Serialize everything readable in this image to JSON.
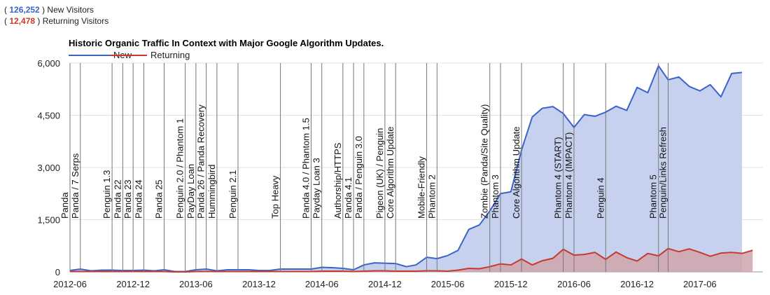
{
  "stats": {
    "new": {
      "value": "126,252",
      "label": "New Visitors",
      "color": "#3a64c8"
    },
    "returning": {
      "value": "12,478",
      "label": "Returning Visitors",
      "color": "#c8392b"
    }
  },
  "chart_data": {
    "type": "area",
    "title": "Historic Organic Traffic In Context with Major Google Algorithm Updates.",
    "legend_position": "top-left",
    "grid": true,
    "ylim": [
      0,
      6000
    ],
    "yticks": [
      "0",
      "1,500",
      "3,000",
      "4,500",
      "6,000"
    ],
    "yticks_values": [
      0,
      1500,
      3000,
      4500,
      6000
    ],
    "xlim": [
      "2012-06-01",
      "2017-12-01"
    ],
    "xticks": [
      "2012-06",
      "2012-12",
      "2013-06",
      "2013-12",
      "2014-06",
      "2014-12",
      "2015-06",
      "2015-12",
      "2016-06",
      "2016-12",
      "2017-06"
    ],
    "series": [
      {
        "name": "New",
        "color": "#3a64c8",
        "fill": "#c5d1ee",
        "points": [
          [
            "2012-06-01",
            40
          ],
          [
            "2012-07-01",
            80
          ],
          [
            "2012-08-01",
            30
          ],
          [
            "2012-09-01",
            50
          ],
          [
            "2012-10-01",
            50
          ],
          [
            "2012-11-01",
            40
          ],
          [
            "2012-12-01",
            40
          ],
          [
            "2013-01-01",
            50
          ],
          [
            "2013-02-01",
            30
          ],
          [
            "2013-03-01",
            60
          ],
          [
            "2013-04-01",
            10
          ],
          [
            "2013-05-01",
            10
          ],
          [
            "2013-06-01",
            60
          ],
          [
            "2013-07-01",
            80
          ],
          [
            "2013-08-01",
            30
          ],
          [
            "2013-09-01",
            60
          ],
          [
            "2013-10-01",
            60
          ],
          [
            "2013-11-01",
            60
          ],
          [
            "2013-12-01",
            40
          ],
          [
            "2014-01-01",
            40
          ],
          [
            "2014-02-01",
            80
          ],
          [
            "2014-03-01",
            80
          ],
          [
            "2014-04-01",
            80
          ],
          [
            "2014-05-01",
            80
          ],
          [
            "2014-06-01",
            130
          ],
          [
            "2014-07-01",
            120
          ],
          [
            "2014-08-01",
            100
          ],
          [
            "2014-09-01",
            60
          ],
          [
            "2014-10-01",
            200
          ],
          [
            "2014-11-01",
            260
          ],
          [
            "2014-12-01",
            250
          ],
          [
            "2015-01-01",
            240
          ],
          [
            "2015-02-01",
            150
          ],
          [
            "2015-03-01",
            200
          ],
          [
            "2015-04-01",
            420
          ],
          [
            "2015-05-01",
            380
          ],
          [
            "2015-06-01",
            470
          ],
          [
            "2015-07-01",
            620
          ],
          [
            "2015-08-01",
            1220
          ],
          [
            "2015-09-01",
            1350
          ],
          [
            "2015-10-01",
            1750
          ],
          [
            "2015-11-01",
            2250
          ],
          [
            "2015-12-01",
            2300
          ],
          [
            "2016-01-01",
            3500
          ],
          [
            "2016-02-01",
            4450
          ],
          [
            "2016-03-01",
            4700
          ],
          [
            "2016-04-01",
            4750
          ],
          [
            "2016-05-01",
            4550
          ],
          [
            "2016-06-01",
            4150
          ],
          [
            "2016-07-01",
            4520
          ],
          [
            "2016-08-01",
            4470
          ],
          [
            "2016-09-01",
            4590
          ],
          [
            "2016-10-01",
            4760
          ],
          [
            "2016-11-01",
            4640
          ],
          [
            "2016-12-01",
            5300
          ],
          [
            "2017-01-01",
            5150
          ],
          [
            "2017-02-01",
            5920
          ],
          [
            "2017-03-01",
            5520
          ],
          [
            "2017-04-01",
            5600
          ],
          [
            "2017-05-01",
            5330
          ],
          [
            "2017-06-01",
            5200
          ],
          [
            "2017-07-01",
            5380
          ],
          [
            "2017-08-01",
            5030
          ],
          [
            "2017-09-01",
            5700
          ],
          [
            "2017-10-01",
            5730
          ]
        ]
      },
      {
        "name": "Returning",
        "color": "#c8392b",
        "fill": "#d0a4ab",
        "points": [
          [
            "2012-06-01",
            10
          ],
          [
            "2012-07-01",
            10
          ],
          [
            "2012-08-01",
            10
          ],
          [
            "2012-09-01",
            10
          ],
          [
            "2012-10-01",
            10
          ],
          [
            "2012-11-01",
            10
          ],
          [
            "2012-12-01",
            10
          ],
          [
            "2013-01-01",
            10
          ],
          [
            "2013-02-01",
            10
          ],
          [
            "2013-03-01",
            10
          ],
          [
            "2013-04-01",
            0
          ],
          [
            "2013-05-01",
            0
          ],
          [
            "2013-06-01",
            10
          ],
          [
            "2013-07-01",
            10
          ],
          [
            "2013-08-01",
            10
          ],
          [
            "2013-09-01",
            10
          ],
          [
            "2013-10-01",
            10
          ],
          [
            "2013-11-01",
            10
          ],
          [
            "2013-12-01",
            10
          ],
          [
            "2014-01-01",
            10
          ],
          [
            "2014-02-01",
            10
          ],
          [
            "2014-03-01",
            10
          ],
          [
            "2014-04-01",
            10
          ],
          [
            "2014-05-01",
            10
          ],
          [
            "2014-06-01",
            20
          ],
          [
            "2014-07-01",
            20
          ],
          [
            "2014-08-01",
            20
          ],
          [
            "2014-09-01",
            10
          ],
          [
            "2014-10-01",
            20
          ],
          [
            "2014-11-01",
            30
          ],
          [
            "2014-12-01",
            30
          ],
          [
            "2015-01-01",
            20
          ],
          [
            "2015-02-01",
            20
          ],
          [
            "2015-03-01",
            20
          ],
          [
            "2015-04-01",
            30
          ],
          [
            "2015-05-01",
            30
          ],
          [
            "2015-06-01",
            20
          ],
          [
            "2015-07-01",
            50
          ],
          [
            "2015-08-01",
            100
          ],
          [
            "2015-09-01",
            90
          ],
          [
            "2015-10-01",
            150
          ],
          [
            "2015-11-01",
            230
          ],
          [
            "2015-12-01",
            200
          ],
          [
            "2016-01-01",
            370
          ],
          [
            "2016-02-01",
            200
          ],
          [
            "2016-03-01",
            320
          ],
          [
            "2016-04-01",
            390
          ],
          [
            "2016-05-01",
            650
          ],
          [
            "2016-06-01",
            480
          ],
          [
            "2016-07-01",
            500
          ],
          [
            "2016-08-01",
            560
          ],
          [
            "2016-09-01",
            360
          ],
          [
            "2016-10-01",
            570
          ],
          [
            "2016-11-01",
            410
          ],
          [
            "2016-12-01",
            310
          ],
          [
            "2017-01-01",
            530
          ],
          [
            "2017-02-01",
            460
          ],
          [
            "2017-03-01",
            670
          ],
          [
            "2017-04-01",
            580
          ],
          [
            "2017-05-01",
            660
          ],
          [
            "2017-06-01",
            560
          ],
          [
            "2017-07-01",
            450
          ],
          [
            "2017-08-01",
            540
          ],
          [
            "2017-09-01",
            560
          ],
          [
            "2017-10-01",
            530
          ],
          [
            "2017-11-01",
            620
          ]
        ]
      }
    ],
    "annotations": [
      {
        "date": "2012-06-01",
        "label": "Panda"
      },
      {
        "date": "2012-07-01",
        "label": "Panda / 7 Serps"
      },
      {
        "date": "2012-10-01",
        "label": "Penguin 1.3"
      },
      {
        "date": "2012-11-01",
        "label": "Panda 22"
      },
      {
        "date": "2012-12-01",
        "label": "Panda 23"
      },
      {
        "date": "2013-01-01",
        "label": "Panda 24"
      },
      {
        "date": "2013-03-01",
        "label": "Panda 25"
      },
      {
        "date": "2013-05-01",
        "label": "Penguin 2.0 / Phantom 1"
      },
      {
        "date": "2013-06-01",
        "label": "PayDay Loan"
      },
      {
        "date": "2013-07-01",
        "label": "Panda 26 / Panda Recovery"
      },
      {
        "date": "2013-08-01",
        "label": "Hummingbird"
      },
      {
        "date": "2013-10-01",
        "label": "Penguin 2.1"
      },
      {
        "date": "2014-02-01",
        "label": "Top Heavy"
      },
      {
        "date": "2014-05-01",
        "label": "Panda 4.0 / Phantom 1.5"
      },
      {
        "date": "2014-06-01",
        "label": "Payday Loan 3"
      },
      {
        "date": "2014-08-01",
        "label": "Authorship/HTTPS"
      },
      {
        "date": "2014-09-01",
        "label": "Panda 4.1"
      },
      {
        "date": "2014-10-01",
        "label": "Panda / Penguin 3.0"
      },
      {
        "date": "2014-12-01",
        "label": "Pigeon (UK) / Penguin"
      },
      {
        "date": "2015-01-01",
        "label": "Core Algorithm Update"
      },
      {
        "date": "2015-04-01",
        "label": "Mobile-Friendly"
      },
      {
        "date": "2015-05-01",
        "label": "Phantom 2"
      },
      {
        "date": "2015-10-01",
        "label": "Zombie (Panda/Site Quality)"
      },
      {
        "date": "2015-11-01",
        "label": "Phantom 3"
      },
      {
        "date": "2016-01-01",
        "label": "Core Algorithm Update"
      },
      {
        "date": "2016-05-01",
        "label": "Phantom 4 (START)"
      },
      {
        "date": "2016-06-01",
        "label": "Phantom 4 (IMPACT)"
      },
      {
        "date": "2016-09-01",
        "label": "Penguin 4"
      },
      {
        "date": "2017-02-01",
        "label": "Phantom 5"
      },
      {
        "date": "2017-03-01",
        "label": "Penguin/Links Refresh"
      }
    ]
  }
}
